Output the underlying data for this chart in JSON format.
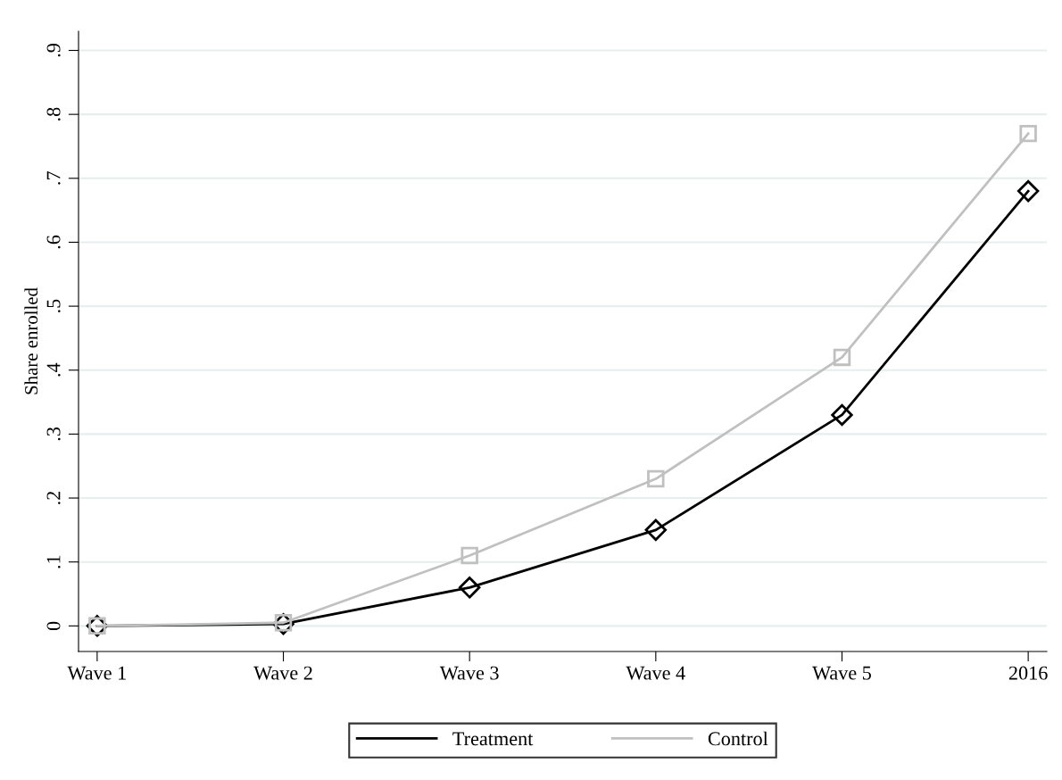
{
  "chart_data": {
    "type": "line",
    "ylabel": "Share enrolled",
    "categories": [
      "Wave 1",
      "Wave 2",
      "Wave 3",
      "Wave 4",
      "Wave 5",
      "2016"
    ],
    "series": [
      {
        "name": "Treatment",
        "color": "#000000",
        "marker": "diamond",
        "values": [
          0,
          0.003,
          0.06,
          0.15,
          0.33,
          0.68
        ]
      },
      {
        "name": "Control",
        "color": "#c0c0c0",
        "marker": "square",
        "values": [
          0,
          0.005,
          0.11,
          0.23,
          0.42,
          0.77
        ]
      }
    ],
    "ylim": [
      -0.04,
      0.93
    ],
    "yticks": [
      {
        "value": 0,
        "label": "0"
      },
      {
        "value": 0.1,
        "label": ".1"
      },
      {
        "value": 0.2,
        "label": ".2"
      },
      {
        "value": 0.3,
        "label": ".3"
      },
      {
        "value": 0.4,
        "label": ".4"
      },
      {
        "value": 0.5,
        "label": ".5"
      },
      {
        "value": 0.6,
        "label": ".6"
      },
      {
        "value": 0.7,
        "label": ".7"
      },
      {
        "value": 0.8,
        "label": ".8"
      },
      {
        "value": 0.9,
        "label": ".9"
      }
    ],
    "grid": "y",
    "legend": "bottom",
    "line_style": "solid"
  }
}
